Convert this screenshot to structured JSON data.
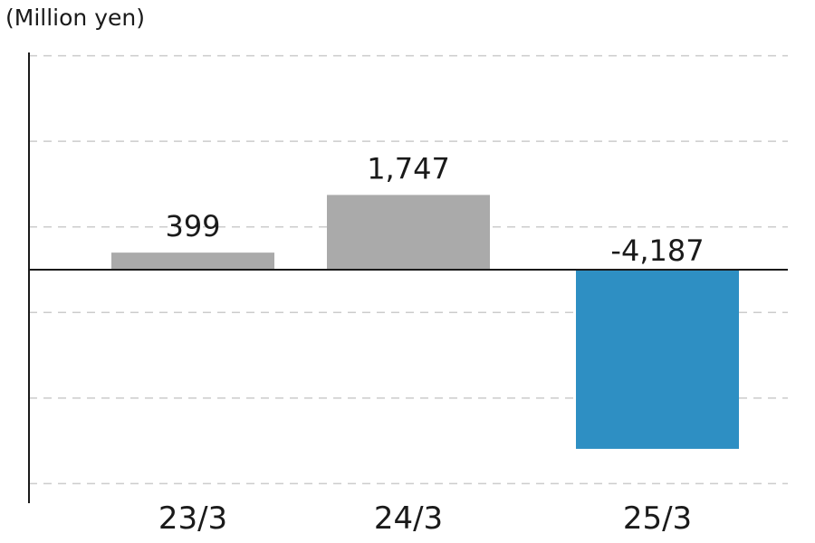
{
  "chart_data": {
    "type": "bar",
    "unit_label": "(Million yen)",
    "categories": [
      "23/3",
      "24/3",
      "25/3"
    ],
    "values": [
      399,
      1747,
      -4187
    ],
    "value_labels": [
      "399",
      "1,747",
      "-4,187"
    ],
    "ylim": [
      -5000,
      5000
    ],
    "grid_step": 2000,
    "grid": true,
    "colors": {
      "positive_bar": "#aaaaaa",
      "negative_bar": "#2e8fc3",
      "grid": "#cccccc",
      "axis": "#1a1a1a"
    }
  }
}
